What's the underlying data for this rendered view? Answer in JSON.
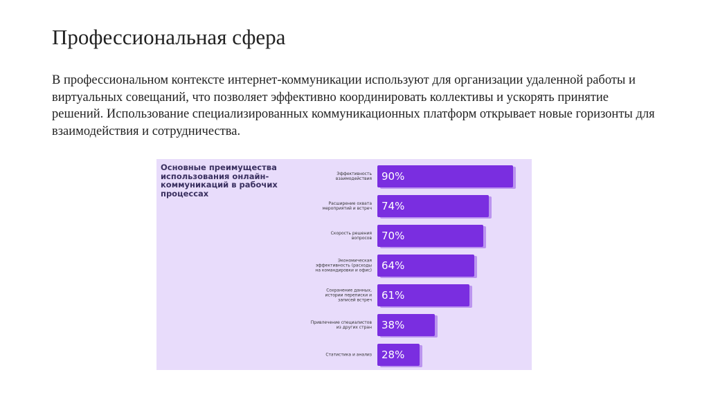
{
  "slide": {
    "title": "Профессиональная сфера",
    "body": "В профессиональном контексте интернет-коммуникации используют для организации удаленной работы и виртуальных совещаний, что позволяет эффективно координировать коллективы и ускорять принятие решений. Использование специализированных коммуникационных платформ открывает новые горизонты для взаимодействия и сотрудничества."
  },
  "chart_data": {
    "type": "bar",
    "orientation": "horizontal",
    "title": "Основные преимущества использования онлайн-коммуникаций в рабочих процессах",
    "categories": [
      "Эффективность взаимодействия",
      "Расширение охвата мероприятий и встреч",
      "Скорость решения вопросов",
      "Экономическая эффективность (расходы на командировки и офис)",
      "Сохранение данных, истории переписки и записей встреч",
      "Привлечение специалистов из других стран",
      "Статистика и анализ"
    ],
    "values": [
      90,
      74,
      70,
      64,
      61,
      38,
      28
    ],
    "value_labels": [
      "90%",
      "74%",
      "70%",
      "64%",
      "61%",
      "38%",
      "28%"
    ],
    "color": "#7a2ee0",
    "background": "#e8dcfb"
  }
}
